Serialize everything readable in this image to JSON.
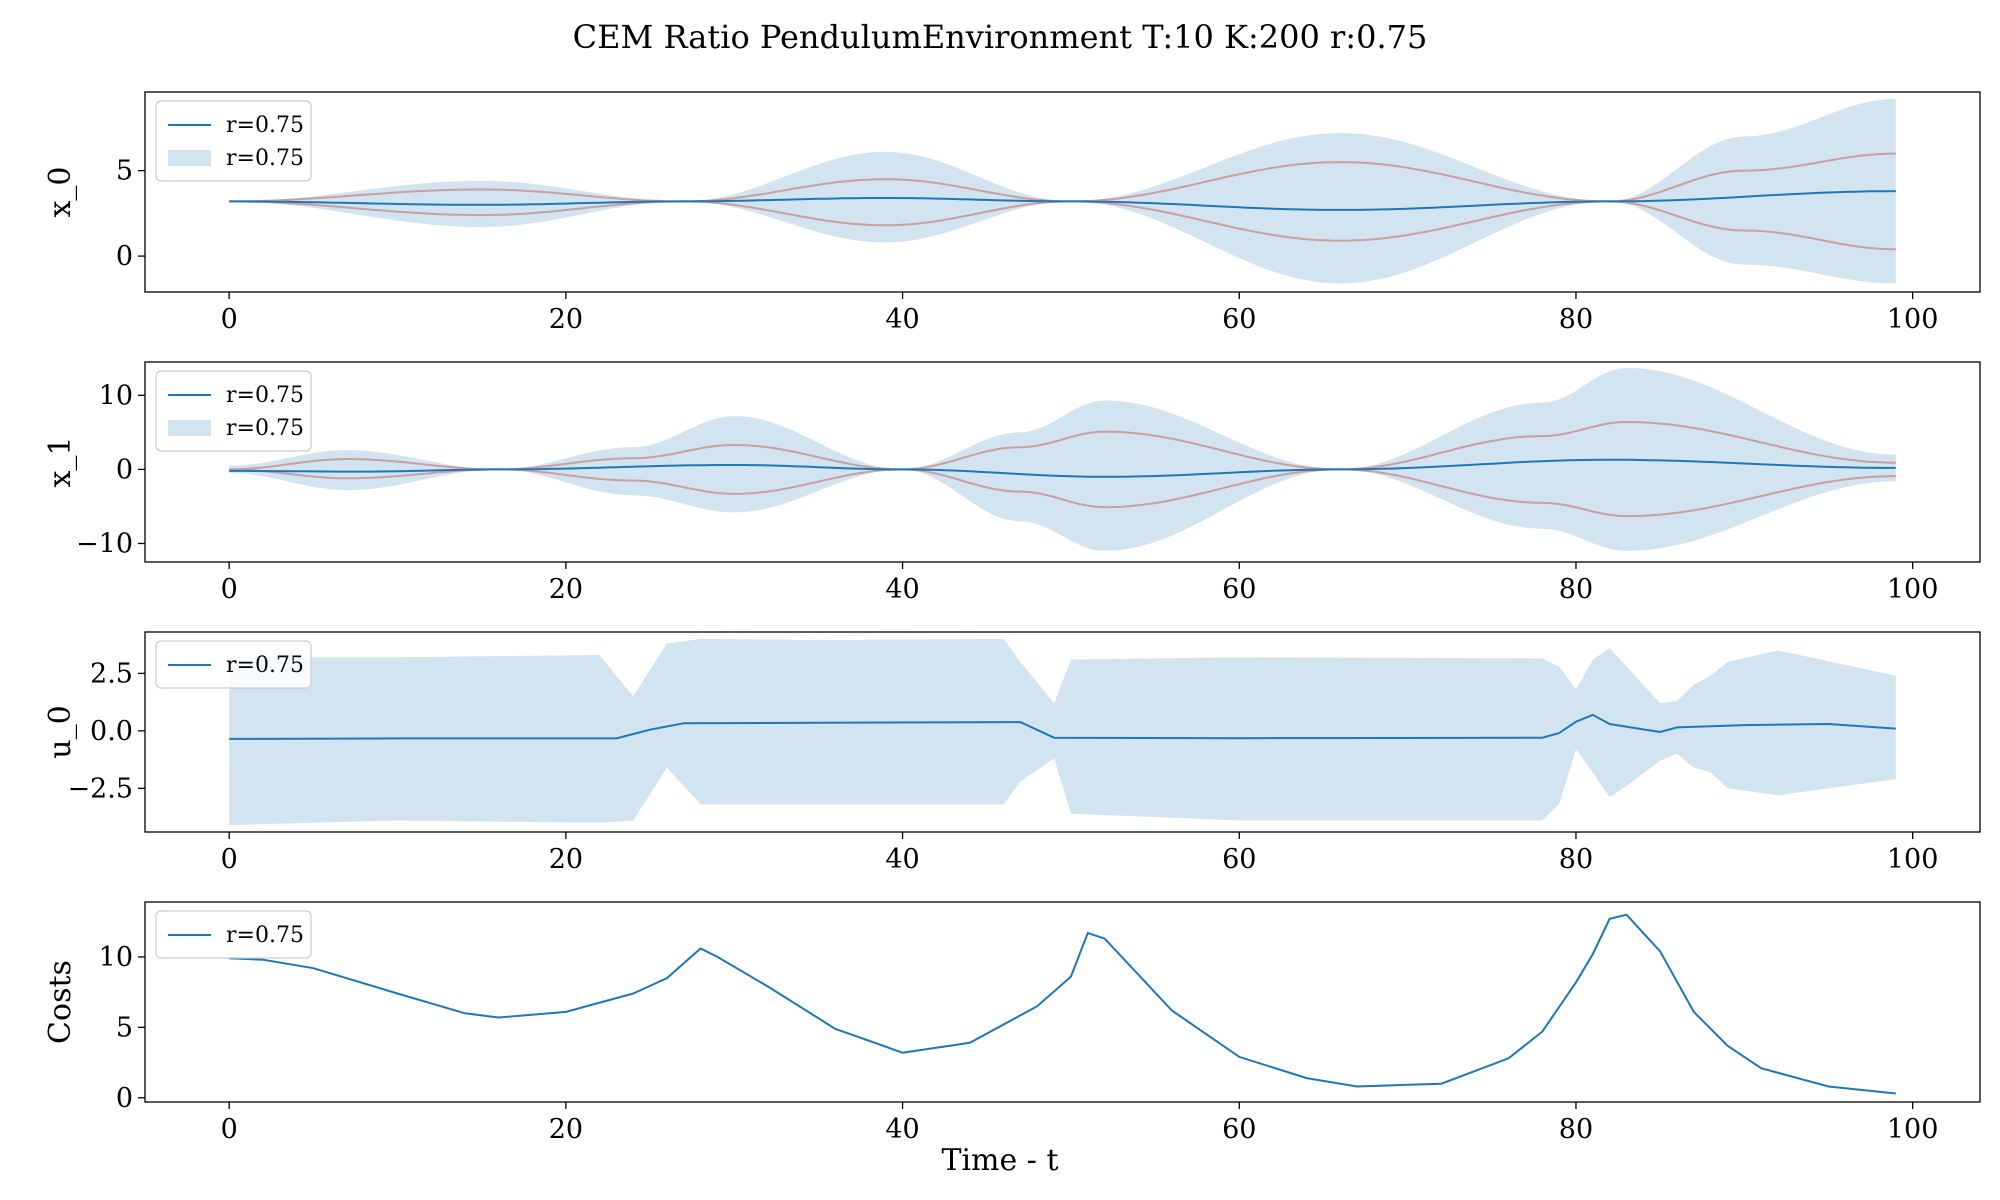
{
  "figure": {
    "title": "CEM Ratio PendulumEnvironment T:10 K:200 r:0.75",
    "xlabel": "Time - t"
  },
  "colors": {
    "mean": "#1f77b4",
    "band": "#1f77b4",
    "band_opacity": 0.2,
    "samples": "#c9a0a0",
    "axes": "#000000"
  },
  "chart_data": [
    {
      "type": "line",
      "ylabel": "x_0",
      "xlim": [
        -5,
        104
      ],
      "ylim": [
        -2.1,
        9.6
      ],
      "yticks": [
        0,
        5
      ],
      "yticklabels": [
        "0",
        "5"
      ],
      "xticks": [
        0,
        20,
        40,
        60,
        80,
        100
      ],
      "xticklabels": [
        "0",
        "20",
        "40",
        "60",
        "80",
        "100"
      ],
      "grid": false,
      "legend_position": "upper left",
      "legend": [
        {
          "label": "r=0.75",
          "kind": "line"
        },
        {
          "label": "r=0.75",
          "kind": "band"
        }
      ],
      "mean": {
        "name": "r=0.75",
        "x": [
          0,
          15,
          27,
          39,
          50,
          66,
          82,
          99
        ],
        "y": [
          3.2,
          3.0,
          3.2,
          3.4,
          3.2,
          2.7,
          3.2,
          3.8
        ]
      },
      "band": {
        "x": [
          0,
          15,
          27,
          39,
          50,
          66,
          82,
          90,
          99
        ],
        "upper": [
          3.2,
          4.4,
          3.2,
          6.1,
          3.2,
          7.2,
          3.2,
          7.0,
          9.2
        ],
        "lower": [
          3.2,
          1.7,
          3.2,
          0.8,
          3.2,
          -1.6,
          3.2,
          -0.5,
          -1.6
        ]
      },
      "samples": [
        {
          "x": [
            0,
            15,
            27,
            39,
            50,
            66,
            82,
            90,
            99
          ],
          "y": [
            3.2,
            3.9,
            3.2,
            4.5,
            3.2,
            5.5,
            3.2,
            5.0,
            6.0
          ]
        },
        {
          "x": [
            0,
            15,
            27,
            39,
            50,
            66,
            82,
            90,
            99
          ],
          "y": [
            3.2,
            2.4,
            3.2,
            1.8,
            3.2,
            0.9,
            3.2,
            1.5,
            0.4
          ]
        }
      ]
    },
    {
      "type": "line",
      "ylabel": "x_1",
      "xlim": [
        -5,
        104
      ],
      "ylim": [
        -12.5,
        14.5
      ],
      "yticks": [
        -10,
        0,
        10
      ],
      "yticklabels": [
        "−10",
        "0",
        "10"
      ],
      "xticks": [
        0,
        20,
        40,
        60,
        80,
        100
      ],
      "xticklabels": [
        "0",
        "20",
        "40",
        "60",
        "80",
        "100"
      ],
      "grid": false,
      "legend_position": "upper left",
      "legend": [
        {
          "label": "r=0.75",
          "kind": "line"
        },
        {
          "label": "r=0.75",
          "kind": "band"
        }
      ],
      "mean": {
        "name": "r=0.75",
        "x": [
          0,
          8,
          16,
          30,
          40,
          52,
          66,
          82,
          99
        ],
        "y": [
          -0.2,
          -0.3,
          0,
          0.6,
          0,
          -1.0,
          0,
          1.3,
          0.2
        ]
      },
      "band": {
        "x": [
          0,
          7,
          16,
          24,
          30,
          40,
          47,
          52,
          66,
          78,
          83,
          99
        ],
        "upper": [
          0.5,
          2.6,
          0,
          3.0,
          7.2,
          0,
          5.0,
          9.3,
          0,
          9.0,
          13.7,
          2.0
        ],
        "lower": [
          -0.5,
          -2.8,
          0,
          -3.5,
          -5.8,
          0,
          -7.0,
          -11.0,
          0,
          -8.0,
          -11.0,
          -1.6
        ]
      },
      "samples": [
        {
          "x": [
            0,
            7,
            16,
            24,
            30,
            40,
            47,
            52,
            66,
            78,
            83,
            99
          ],
          "y": [
            0,
            1.4,
            0,
            1.5,
            3.3,
            0,
            3.0,
            5.1,
            0,
            4.5,
            6.4,
            0.9
          ]
        },
        {
          "x": [
            0,
            7,
            16,
            24,
            30,
            40,
            47,
            52,
            66,
            78,
            83,
            99
          ],
          "y": [
            0,
            -1.2,
            0,
            -1.5,
            -3.3,
            0,
            -3.0,
            -5.1,
            0,
            -4.5,
            -6.3,
            -0.9
          ]
        }
      ]
    },
    {
      "type": "line",
      "ylabel": "u_0",
      "xlim": [
        -5,
        104
      ],
      "ylim": [
        -4.4,
        4.3
      ],
      "yticks": [
        -2.5,
        0,
        2.5
      ],
      "yticklabels": [
        "−2.5",
        "0.0",
        "2.5"
      ],
      "xticks": [
        0,
        20,
        40,
        60,
        80,
        100
      ],
      "xticklabels": [
        "0",
        "20",
        "40",
        "60",
        "80",
        "100"
      ],
      "grid": false,
      "legend_position": "upper left",
      "legend": [
        {
          "label": "r=0.75",
          "kind": "line"
        }
      ],
      "mean": {
        "name": "r=0.75",
        "x": [
          0,
          10,
          23,
          25,
          27,
          35,
          47,
          49,
          60,
          78,
          79,
          80,
          81,
          82,
          85,
          86,
          90,
          95,
          99
        ],
        "y": [
          -0.35,
          -0.33,
          -0.33,
          0.05,
          0.33,
          0.35,
          0.38,
          -0.3,
          -0.32,
          -0.3,
          -0.1,
          0.4,
          0.7,
          0.3,
          -0.05,
          0.15,
          0.25,
          0.3,
          0.1
        ]
      },
      "band": {
        "x": [
          0,
          10,
          22,
          24,
          26,
          28,
          35,
          46,
          47,
          49,
          50,
          60,
          78,
          79,
          80,
          81,
          82,
          83,
          85,
          86,
          87,
          88,
          89,
          92,
          99
        ],
        "upper": [
          3.2,
          3.2,
          3.3,
          1.5,
          3.8,
          4.0,
          3.95,
          4.0,
          3.0,
          1.2,
          3.1,
          3.2,
          3.15,
          2.8,
          1.8,
          3.1,
          3.6,
          2.8,
          1.2,
          1.3,
          2.0,
          2.4,
          3.0,
          3.5,
          2.4
        ],
        "lower": [
          -4.1,
          -3.9,
          -4.0,
          -3.9,
          -1.6,
          -3.2,
          -3.2,
          -3.2,
          -2.2,
          -1.2,
          -3.6,
          -3.9,
          -3.9,
          -3.2,
          -0.8,
          -1.8,
          -2.9,
          -2.4,
          -1.3,
          -1.0,
          -1.6,
          -1.8,
          -2.5,
          -2.8,
          -2.1
        ]
      },
      "samples": []
    },
    {
      "type": "line",
      "ylabel": "Costs",
      "xlim": [
        -5,
        104
      ],
      "ylim": [
        -0.3,
        13.9
      ],
      "yticks": [
        0,
        5,
        10
      ],
      "yticklabels": [
        "0",
        "5",
        "10"
      ],
      "xticks": [
        0,
        20,
        40,
        60,
        80,
        100
      ],
      "xticklabels": [
        "0",
        "20",
        "40",
        "60",
        "80",
        "100"
      ],
      "grid": false,
      "legend_position": "upper left",
      "legend": [
        {
          "label": "r=0.75",
          "kind": "line"
        }
      ],
      "mean": {
        "name": "r=0.75",
        "x": [
          0,
          2,
          5,
          10,
          14,
          16,
          20,
          24,
          26,
          28,
          29,
          32,
          36,
          40,
          44,
          48,
          50,
          51,
          52,
          56,
          60,
          64,
          67,
          72,
          76,
          78,
          80,
          81,
          82,
          83,
          85,
          87,
          89,
          91,
          95,
          99
        ],
        "y": [
          9.9,
          9.8,
          9.2,
          7.4,
          6.0,
          5.7,
          6.1,
          7.4,
          8.5,
          10.6,
          10.0,
          7.9,
          4.9,
          3.2,
          3.9,
          6.5,
          8.6,
          11.7,
          11.3,
          6.2,
          2.9,
          1.4,
          0.8,
          1.0,
          2.8,
          4.7,
          8.2,
          10.2,
          12.7,
          13.0,
          10.4,
          6.1,
          3.7,
          2.1,
          0.8,
          0.3
        ]
      },
      "band": null,
      "samples": []
    }
  ]
}
